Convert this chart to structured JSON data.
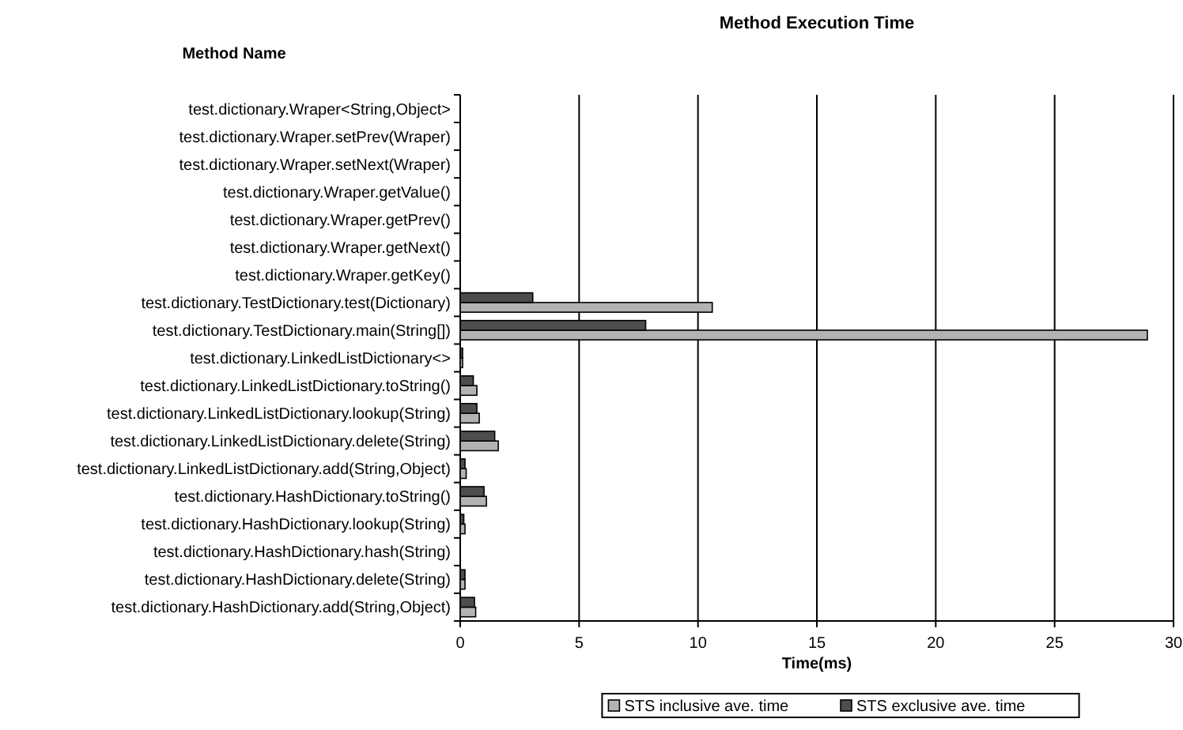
{
  "chart_data": {
    "type": "bar",
    "orientation": "horizontal",
    "title": "Method Execution Time",
    "ylabel": "Method Name",
    "xlabel": "Time(ms)",
    "categories": [
      "test.dictionary.Wraper<String,Object>",
      "test.dictionary.Wraper.setPrev(Wraper)",
      "test.dictionary.Wraper.setNext(Wraper)",
      "test.dictionary.Wraper.getValue()",
      "test.dictionary.Wraper.getPrev()",
      "test.dictionary.Wraper.getNext()",
      "test.dictionary.Wraper.getKey()",
      "test.dictionary.TestDictionary.test(Dictionary)",
      "test.dictionary.TestDictionary.main(String[])",
      "test.dictionary.LinkedListDictionary<>",
      "test.dictionary.LinkedListDictionary.toString()",
      "test.dictionary.LinkedListDictionary.lookup(String)",
      "test.dictionary.LinkedListDictionary.delete(String)",
      "test.dictionary.LinkedListDictionary.add(String,Object)",
      "test.dictionary.HashDictionary.toString()",
      "test.dictionary.HashDictionary.lookup(String)",
      "test.dictionary.HashDictionary.hash(String)",
      "test.dictionary.HashDictionary.delete(String)",
      "test.dictionary.HashDictionary.add(String,Object)"
    ],
    "series": [
      {
        "name": "STS inclusive ave. time",
        "color": "#b3b3b3",
        "values": [
          0,
          0,
          0,
          0,
          0,
          0,
          0,
          10.6,
          28.9,
          0.1,
          0.7,
          0.8,
          1.6,
          0.25,
          1.1,
          0.2,
          0,
          0.2,
          0.65
        ]
      },
      {
        "name": "STS exclusive ave. time",
        "color": "#4d4d4d",
        "values": [
          0,
          0,
          0,
          0,
          0,
          0,
          0,
          3.05,
          7.8,
          0.1,
          0.55,
          0.7,
          1.45,
          0.2,
          1.0,
          0.15,
          0,
          0.2,
          0.6
        ]
      }
    ],
    "xlim": [
      0,
      30
    ],
    "xticks": [
      0,
      5,
      10,
      15,
      20,
      25,
      30
    ],
    "grid": "x",
    "legend": "bottom"
  }
}
